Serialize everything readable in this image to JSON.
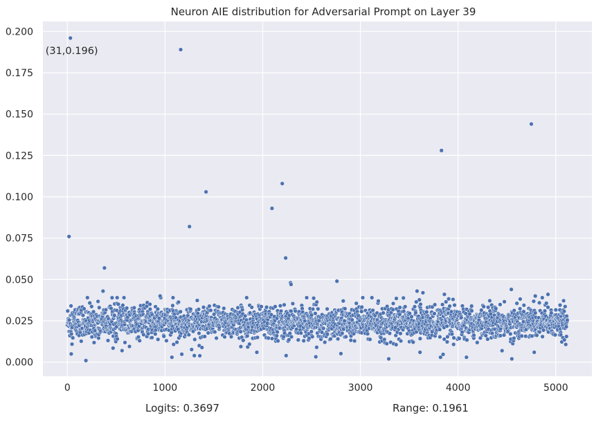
{
  "chart_data": {
    "type": "scatter",
    "title": "Neuron AIE distribution for Adversarial Prompt on Layer 39",
    "xlabel": "",
    "ylabel": "",
    "xlim": [
      -250,
      5370
    ],
    "ylim": [
      -0.0085,
      0.206
    ],
    "x_ticks": [
      0,
      1000,
      2000,
      3000,
      4000,
      5000
    ],
    "x_tick_labels": [
      "0",
      "1000",
      "2000",
      "3000",
      "4000",
      "5000"
    ],
    "y_ticks": [
      0.0,
      0.025,
      0.05,
      0.075,
      0.1,
      0.125,
      0.15,
      0.175,
      0.2
    ],
    "y_tick_labels": [
      "0.000",
      "0.025",
      "0.050",
      "0.075",
      "0.100",
      "0.125",
      "0.150",
      "0.175",
      "0.200"
    ],
    "grid": true,
    "background": "#eaeaf2",
    "grid_color": "#ffffff",
    "marker_color": "#4c72b0",
    "n_points": 5120,
    "bulk_center": 0.024,
    "bulk_spread": 0.005,
    "outliers": [
      {
        "x": 31,
        "y": 0.196
      },
      {
        "x": 17,
        "y": 0.076
      },
      {
        "x": 1160,
        "y": 0.189
      },
      {
        "x": 4750,
        "y": 0.144
      },
      {
        "x": 3830,
        "y": 0.128
      },
      {
        "x": 2200,
        "y": 0.108
      },
      {
        "x": 1420,
        "y": 0.103
      },
      {
        "x": 2095,
        "y": 0.093
      },
      {
        "x": 1250,
        "y": 0.082
      },
      {
        "x": 2235,
        "y": 0.063
      },
      {
        "x": 380,
        "y": 0.057
      },
      {
        "x": 2760,
        "y": 0.049
      },
      {
        "x": 2285,
        "y": 0.048
      },
      {
        "x": 2290,
        "y": 0.047
      },
      {
        "x": 4545,
        "y": 0.044
      },
      {
        "x": 3580,
        "y": 0.043
      },
      {
        "x": 365,
        "y": 0.043
      },
      {
        "x": 3640,
        "y": 0.042
      },
      {
        "x": 4920,
        "y": 0.041
      },
      {
        "x": 3860,
        "y": 0.041
      },
      {
        "x": 950,
        "y": 0.04
      },
      {
        "x": 4790,
        "y": 0.04
      },
      {
        "x": 190,
        "y": 0.001
      },
      {
        "x": 3290,
        "y": 0.002
      },
      {
        "x": 1070,
        "y": 0.003
      },
      {
        "x": 4550,
        "y": 0.002
      },
      {
        "x": 3820,
        "y": 0.003
      },
      {
        "x": 2240,
        "y": 0.004
      },
      {
        "x": 1300,
        "y": 0.004
      },
      {
        "x": 40,
        "y": 0.005
      },
      {
        "x": 1940,
        "y": 0.006
      },
      {
        "x": 560,
        "y": 0.007
      },
      {
        "x": 3610,
        "y": 0.006
      },
      {
        "x": 4780,
        "y": 0.006
      }
    ],
    "annotation": {
      "text": "(31,0.196)"
    }
  },
  "footer": {
    "logits": "Logits: 0.3697",
    "range": "Range: 0.1961"
  }
}
